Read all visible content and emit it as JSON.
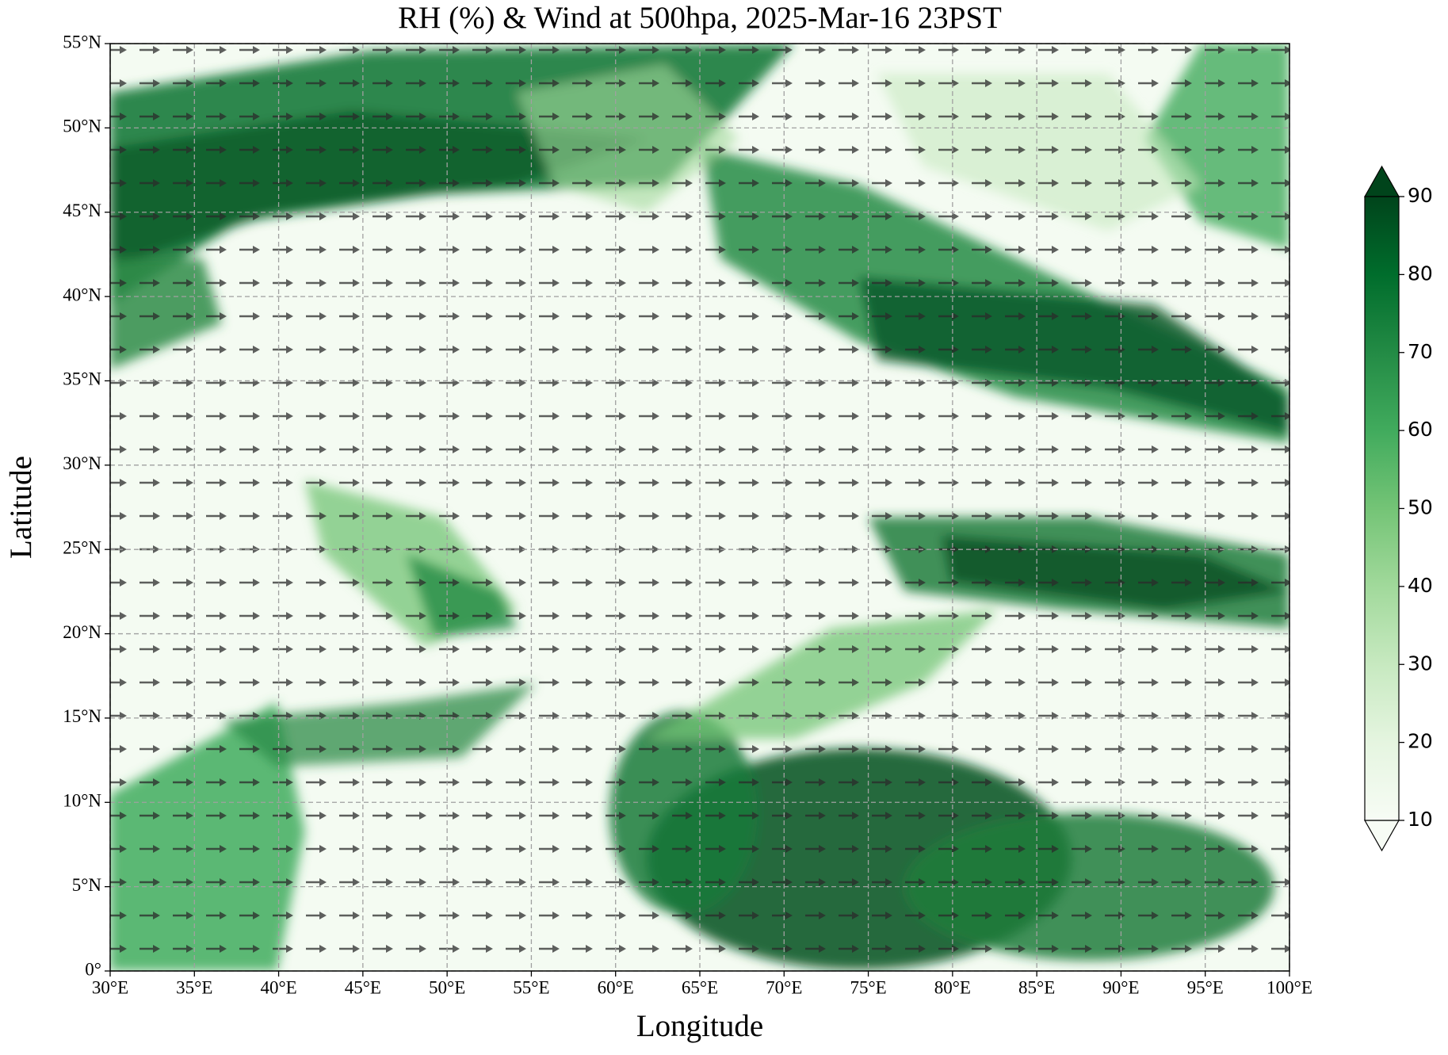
{
  "chart_data": {
    "type": "map",
    "title": "RH (%) & Wind at 500hpa, 2025-Mar-16 23PST",
    "xlabel": "Longitude",
    "ylabel": "Latitude",
    "xlim": [
      30,
      100
    ],
    "ylim": [
      0,
      55
    ],
    "xticks": [
      {
        "value": 30,
        "label": "30°E"
      },
      {
        "value": 35,
        "label": "35°E"
      },
      {
        "value": 40,
        "label": "40°E"
      },
      {
        "value": 45,
        "label": "45°E"
      },
      {
        "value": 50,
        "label": "50°E"
      },
      {
        "value": 55,
        "label": "55°E"
      },
      {
        "value": 60,
        "label": "60°E"
      },
      {
        "value": 65,
        "label": "65°E"
      },
      {
        "value": 70,
        "label": "70°E"
      },
      {
        "value": 75,
        "label": "75°E"
      },
      {
        "value": 80,
        "label": "80°E"
      },
      {
        "value": 85,
        "label": "85°E"
      },
      {
        "value": 90,
        "label": "90°E"
      },
      {
        "value": 95,
        "label": "95°E"
      },
      {
        "value": 100,
        "label": "100°E"
      }
    ],
    "yticks": [
      {
        "value": 0,
        "label": "0°"
      },
      {
        "value": 5,
        "label": "5°N"
      },
      {
        "value": 10,
        "label": "10°N"
      },
      {
        "value": 15,
        "label": "15°N"
      },
      {
        "value": 20,
        "label": "20°N"
      },
      {
        "value": 25,
        "label": "25°N"
      },
      {
        "value": 30,
        "label": "30°N"
      },
      {
        "value": 35,
        "label": "35°N"
      },
      {
        "value": 40,
        "label": "40°N"
      },
      {
        "value": 45,
        "label": "45°N"
      },
      {
        "value": 50,
        "label": "50°N"
      },
      {
        "value": 55,
        "label": "55°N"
      }
    ],
    "grid": true,
    "colorbar": {
      "lim": [
        10,
        90
      ],
      "ticks": [
        10,
        20,
        30,
        40,
        50,
        60,
        70,
        80,
        90
      ],
      "colors": [
        "#f7fcf5",
        "#e5f5e0",
        "#c7e9c0",
        "#a1d99b",
        "#74c476",
        "#41ab5d",
        "#238b45",
        "#006d2c",
        "#00441b"
      ]
    }
  }
}
